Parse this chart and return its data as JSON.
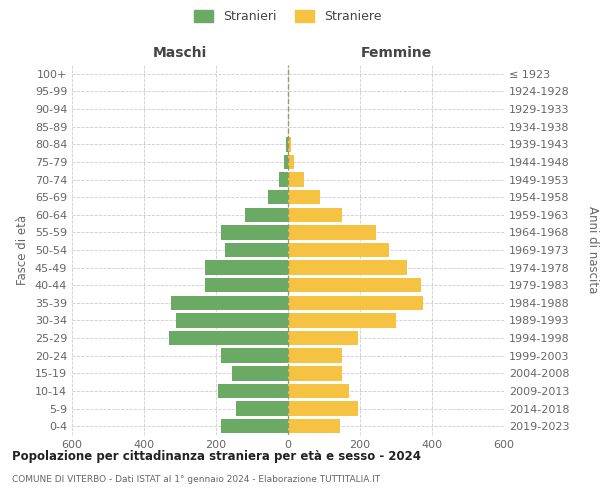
{
  "age_groups": [
    "0-4",
    "5-9",
    "10-14",
    "15-19",
    "20-24",
    "25-29",
    "30-34",
    "35-39",
    "40-44",
    "45-49",
    "50-54",
    "55-59",
    "60-64",
    "65-69",
    "70-74",
    "75-79",
    "80-84",
    "85-89",
    "90-94",
    "95-99",
    "100+"
  ],
  "birth_years": [
    "2019-2023",
    "2014-2018",
    "2009-2013",
    "2004-2008",
    "1999-2003",
    "1994-1998",
    "1989-1993",
    "1984-1988",
    "1979-1983",
    "1974-1978",
    "1969-1973",
    "1964-1968",
    "1959-1963",
    "1954-1958",
    "1949-1953",
    "1944-1948",
    "1939-1943",
    "1934-1938",
    "1929-1933",
    "1924-1928",
    "≤ 1923"
  ],
  "males": [
    185,
    145,
    195,
    155,
    185,
    330,
    310,
    325,
    230,
    230,
    175,
    185,
    120,
    55,
    25,
    10,
    5,
    0,
    0,
    0,
    0
  ],
  "females": [
    145,
    195,
    170,
    150,
    150,
    195,
    300,
    375,
    370,
    330,
    280,
    245,
    150,
    90,
    45,
    18,
    8,
    0,
    0,
    0,
    0
  ],
  "male_color": "#6aaa64",
  "female_color": "#f5c242",
  "title": "Popolazione per cittadinanza straniera per età e sesso - 2024",
  "subtitle": "COMUNE DI VITERBO - Dati ISTAT al 1° gennaio 2024 - Elaborazione TUTTITALIA.IT",
  "header_left": "Maschi",
  "header_right": "Femmine",
  "ylabel_left": "Fasce di età",
  "ylabel_right": "Anni di nascita",
  "legend_males": "Stranieri",
  "legend_females": "Straniere",
  "xlim": 600,
  "bar_height": 0.82,
  "grid_color": "#cccccc",
  "background_color": "#ffffff",
  "text_color": "#666666",
  "header_color": "#444444",
  "center_line_color": "#999966",
  "title_color": "#222222"
}
